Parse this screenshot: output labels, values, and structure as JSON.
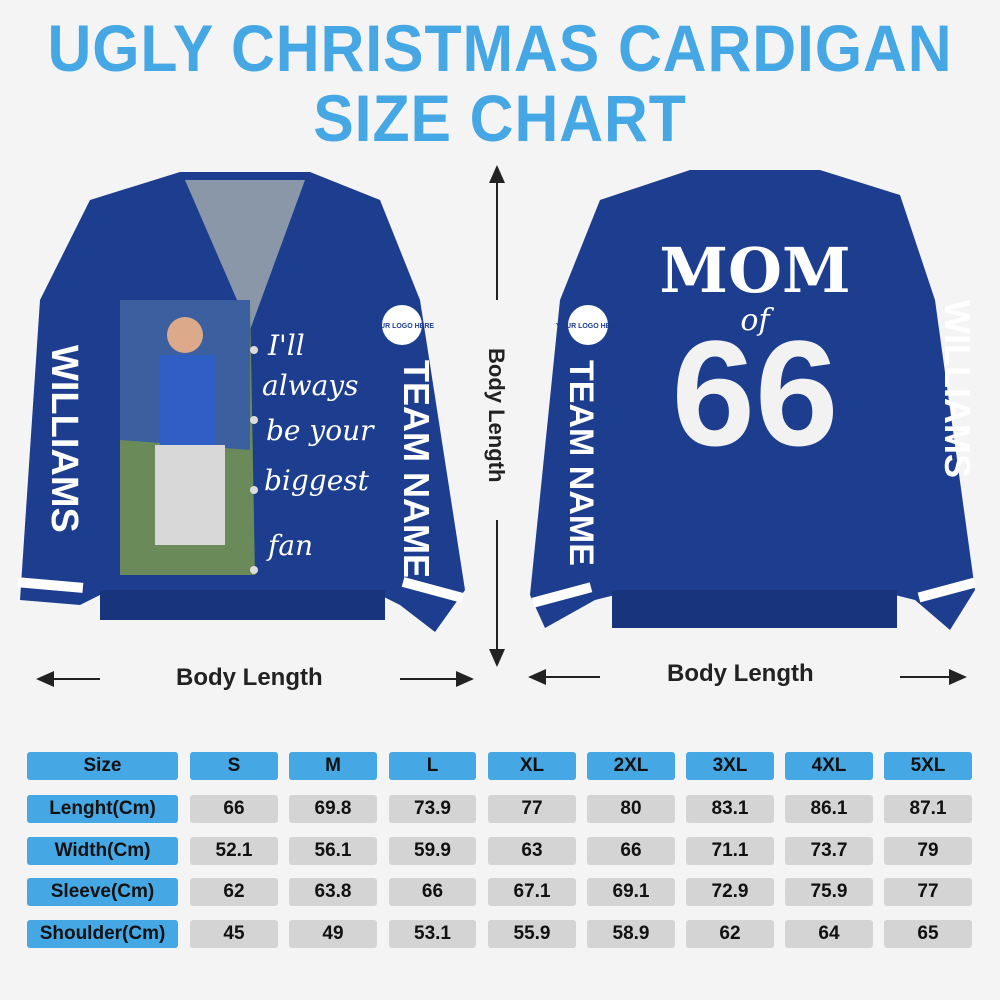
{
  "title": {
    "line1": "UGLY CHRISTMAS CARDIGAN",
    "line2": "SIZE CHART"
  },
  "measure": {
    "front_label": "Body Length",
    "back_label": "Body Length",
    "vertical_label": "Body Length"
  },
  "front": {
    "sleeve_name": "WILLIAMS",
    "sleeve_team": "TEAM NAME",
    "logo": "YOUR LOGO HERE",
    "quote": [
      "I'll",
      "always",
      "be your",
      "biggest",
      "fan"
    ],
    "color": "#1d3d8f"
  },
  "back": {
    "title": "MOM",
    "of": "of",
    "number": "66",
    "sleeve_name": "WILLIAMS",
    "sleeve_team": "TEAM NAME",
    "logo": "YOUR LOGO HERE",
    "color": "#1d3d8f"
  },
  "colors": {
    "accent": "#45a7e3",
    "cell": "#d4d4d4",
    "background": "#f4f4f4"
  },
  "table": {
    "header": [
      "Size",
      "S",
      "M",
      "L",
      "XL",
      "2XL",
      "3XL",
      "4XL",
      "5XL"
    ],
    "rows": [
      {
        "label": "Lenght(Cm)",
        "values": [
          "66",
          "69.8",
          "73.9",
          "77",
          "80",
          "83.1",
          "86.1",
          "87.1"
        ]
      },
      {
        "label": "Width(Cm)",
        "values": [
          "52.1",
          "56.1",
          "59.9",
          "63",
          "66",
          "71.1",
          "73.7",
          "79"
        ]
      },
      {
        "label": "Sleeve(Cm)",
        "values": [
          "62",
          "63.8",
          "66",
          "67.1",
          "69.1",
          "72.9",
          "75.9",
          "77"
        ]
      },
      {
        "label": "Shoulder(Cm)",
        "values": [
          "45",
          "49",
          "53.1",
          "55.9",
          "58.9",
          "62",
          "64",
          "65"
        ]
      }
    ]
  }
}
